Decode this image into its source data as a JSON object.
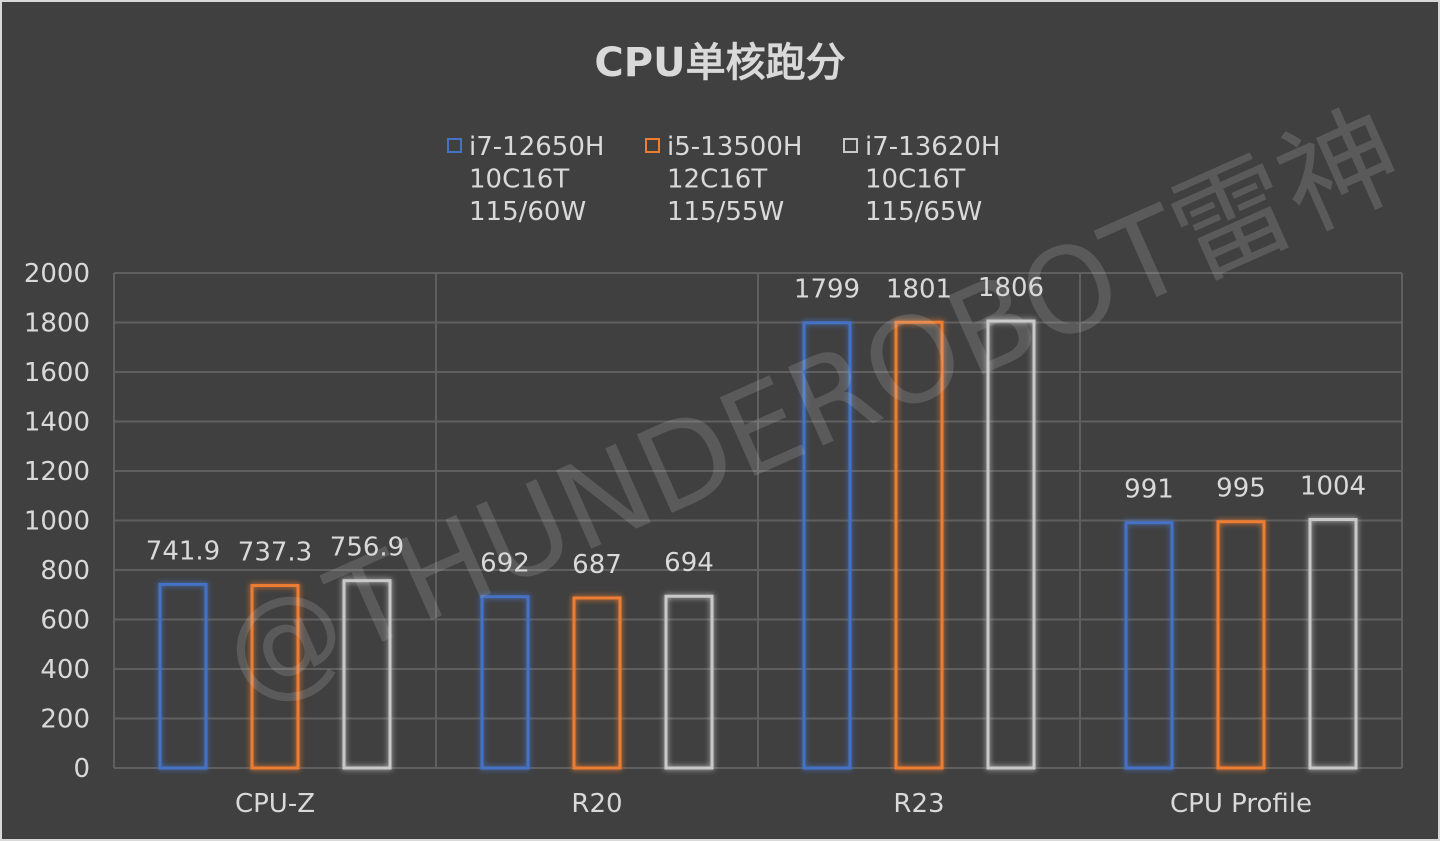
{
  "watermark": "@THUNDEROBOT雷神",
  "chart_data": {
    "type": "bar",
    "title": "CPU单核跑分",
    "categories": [
      "CPU-Z",
      "R20",
      "R23",
      "CPU Profile"
    ],
    "series": [
      {
        "name": "i7-12650H",
        "legend_lines": [
          "i7-12650H",
          "10C16T",
          "115/60W"
        ],
        "color": "#4472c4",
        "values": [
          741.9,
          692,
          1799,
          991
        ],
        "labels": [
          "741.9",
          "692",
          "1799",
          "991"
        ]
      },
      {
        "name": "i5-13500H",
        "legend_lines": [
          "i5-13500H",
          "12C16T",
          "115/55W"
        ],
        "color": "#ed7d31",
        "values": [
          737.3,
          687,
          1801,
          995
        ],
        "labels": [
          "737.3",
          "687",
          "1801",
          "995"
        ]
      },
      {
        "name": "i7-13620H",
        "legend_lines": [
          "i7-13620H",
          "10C16T",
          "115/65W"
        ],
        "color": "#c9c9c9",
        "values": [
          756.9,
          694,
          1806,
          1004
        ],
        "labels": [
          "756.9",
          "694",
          "1806",
          "1004"
        ]
      }
    ],
    "ylim": [
      0,
      2000
    ],
    "yticks": [
      0,
      200,
      400,
      600,
      800,
      1000,
      1200,
      1400,
      1600,
      1800,
      2000
    ],
    "xlabel": "",
    "ylabel": "",
    "grid": true,
    "legend_position": "top"
  }
}
